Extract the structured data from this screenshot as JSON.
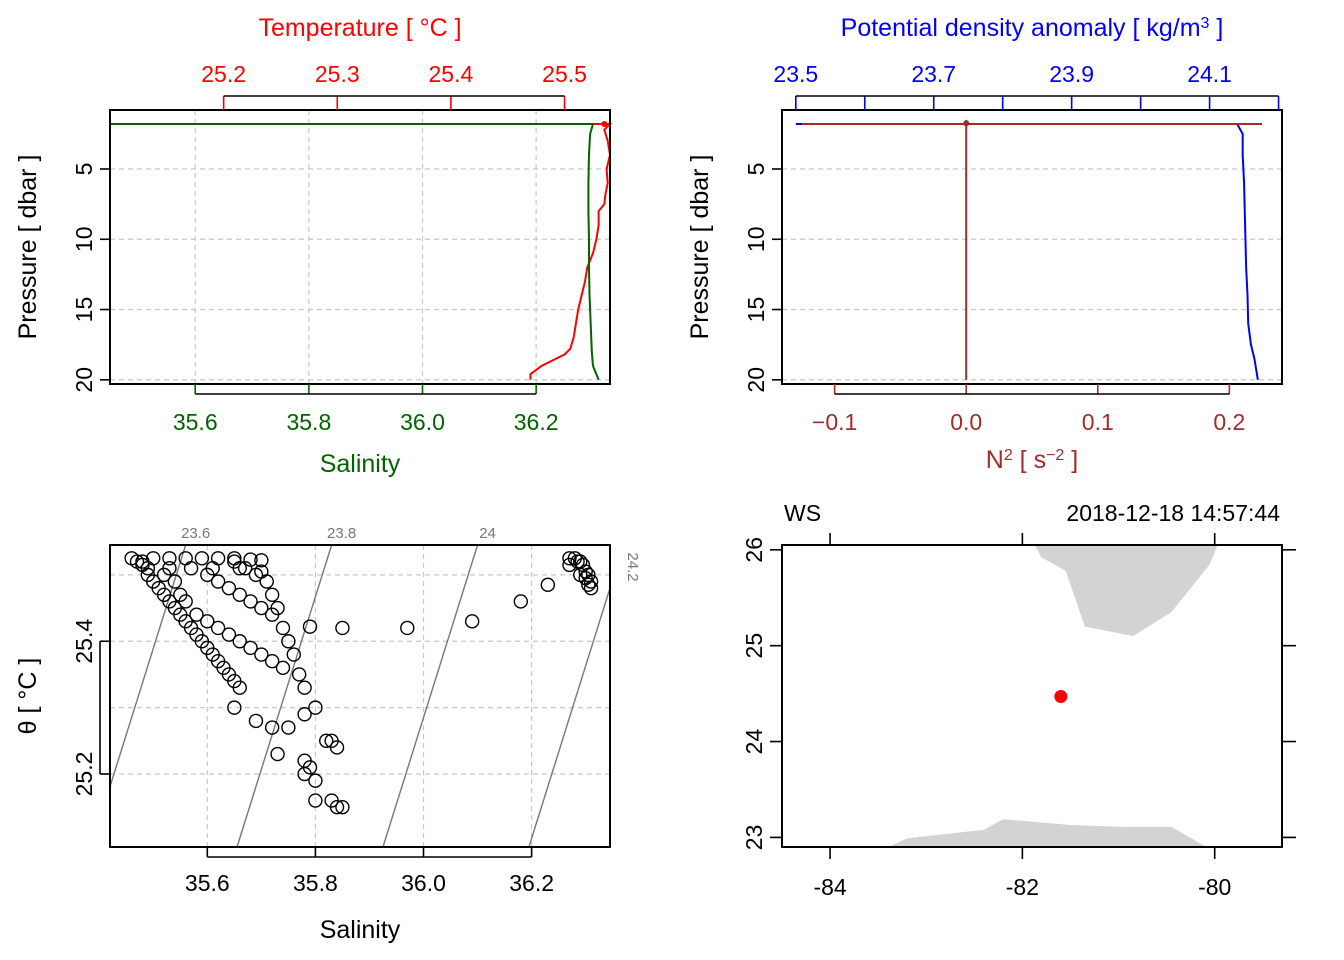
{
  "colors": {
    "temperature": "#ff0000",
    "salinity": "#006400",
    "density": "#0000ff",
    "n2": "#a52a2a",
    "grid": "#c8c8c8",
    "isopycnal": "#777777",
    "land": "#d3d3d3",
    "station": "#ff0000"
  },
  "chart_data": [
    {
      "type": "line",
      "panel": "profile-salinity-temperature",
      "top_axis_title": "Temperature [ °C ]",
      "bottom_axis_title": "Salinity",
      "ylabel": "Pressure [ dbar ]",
      "temp_ticks": [
        "25.2",
        "25.3",
        "25.4",
        "25.5"
      ],
      "sal_ticks": [
        "35.6",
        "35.8",
        "36.0",
        "36.2"
      ],
      "pressure_ticks": [
        "5",
        "10",
        "15",
        "20"
      ],
      "xlim_salinity": [
        35.45,
        36.33
      ],
      "xlim_temperature": [
        25.1,
        25.54
      ],
      "ylim_pressure": [
        20.3,
        0.8
      ],
      "grid": true,
      "series": [
        {
          "name": "Temperature",
          "x": [
            25.0,
            25.55,
            25.535,
            25.538,
            25.54,
            25.537,
            25.538,
            25.536,
            25.535,
            25.53,
            25.53,
            25.528,
            25.525,
            25.52,
            25.518,
            25.515,
            25.512,
            25.51,
            25.508,
            25.505,
            25.5,
            25.49,
            25.48,
            25.475,
            25.47,
            25.47
          ],
          "y": [
            1.8,
            1.8,
            2.2,
            3.0,
            4.0,
            5.0,
            6.0,
            6.8,
            7.5,
            8.0,
            9.0,
            10.0,
            11.0,
            12.0,
            13.0,
            14.0,
            15.0,
            16.0,
            17.0,
            17.8,
            18.2,
            18.6,
            19.0,
            19.3,
            19.6,
            20.0
          ]
        },
        {
          "name": "Salinity",
          "x": [
            35.45,
            36.3,
            36.295,
            36.293,
            36.292,
            36.292,
            36.293,
            36.293,
            36.294,
            36.296,
            36.298,
            36.3,
            36.31
          ],
          "y": [
            1.8,
            1.8,
            2.5,
            4.0,
            6.0,
            8.0,
            10.0,
            12.0,
            14.0,
            16.0,
            18.0,
            19.0,
            20.0
          ]
        }
      ]
    },
    {
      "type": "line",
      "panel": "profile-density-n2",
      "top_axis_title": "Potential density anomaly [ kg/m",
      "top_axis_title_sup": "3",
      "top_axis_title_end": " ]",
      "bottom_axis_title": "N",
      "bottom_axis_title_sup": "2",
      "bottom_axis_title_mid": " [ s",
      "bottom_axis_title_sup2": "−2",
      "bottom_axis_title_end": " ]",
      "ylabel": "Pressure [ dbar ]",
      "density_ticks": [
        "23.5",
        "23.7",
        "23.9",
        "24.1"
      ],
      "density_minor_ticks": [
        23.5,
        23.6,
        23.7,
        23.8,
        23.9,
        24.0,
        24.1,
        24.2
      ],
      "n2_ticks": [
        "−0.1",
        "0.0",
        "0.1",
        "0.2"
      ],
      "pressure_ticks": [
        "5",
        "10",
        "15",
        "20"
      ],
      "xlim_density": [
        23.48,
        24.205
      ],
      "xlim_n2": [
        -0.14,
        0.24
      ],
      "ylim_pressure": [
        20.3,
        0.8
      ],
      "grid": true,
      "series": [
        {
          "name": "Potential density anomaly",
          "x": [
            23.5,
            24.14,
            24.148,
            24.148,
            24.15,
            24.151,
            24.152,
            24.153,
            24.155,
            24.156,
            24.16,
            24.165,
            24.17
          ],
          "y": [
            1.8,
            1.8,
            2.5,
            4.0,
            6.0,
            8.0,
            10.0,
            12.0,
            14.0,
            16.0,
            17.5,
            18.5,
            20.0
          ]
        },
        {
          "name": "N2",
          "x": [
            0.0,
            0.0
          ],
          "y": [
            1.5,
            20.0
          ]
        },
        {
          "name": "N2 top spike",
          "x": [
            -0.14,
            0.24
          ],
          "y": [
            1.8,
            1.8
          ]
        }
      ]
    },
    {
      "type": "scatter",
      "panel": "ts-diagram",
      "xlabel": "Salinity",
      "ylabel": "θ [ °C ]",
      "x_ticks": [
        "35.6",
        "35.8",
        "36.0",
        "36.2"
      ],
      "y_ticks": [
        "25.2",
        "25.4"
      ],
      "xlim": [
        35.42,
        36.345
      ],
      "ylim": [
        25.09,
        25.545
      ],
      "isopycnals": [
        "23.6",
        "23.8",
        "24",
        "24.2"
      ],
      "grid": true,
      "points": [
        [
          36.27,
          25.525
        ],
        [
          36.28,
          25.525
        ],
        [
          36.29,
          25.52
        ],
        [
          36.295,
          25.515
        ],
        [
          36.3,
          25.505
        ],
        [
          36.305,
          25.5
        ],
        [
          36.31,
          25.49
        ],
        [
          36.305,
          25.485
        ],
        [
          36.31,
          25.48
        ],
        [
          36.285,
          25.52
        ],
        [
          36.29,
          25.5
        ],
        [
          36.3,
          25.495
        ],
        [
          36.27,
          25.515
        ],
        [
          36.23,
          25.485
        ],
        [
          36.18,
          25.46
        ],
        [
          36.09,
          25.43
        ],
        [
          35.97,
          25.42
        ],
        [
          35.85,
          25.42
        ],
        [
          35.79,
          25.422
        ],
        [
          35.46,
          25.525
        ],
        [
          35.47,
          25.52
        ],
        [
          35.48,
          25.515
        ],
        [
          35.49,
          25.5
        ],
        [
          35.5,
          25.49
        ],
        [
          35.51,
          25.48
        ],
        [
          35.52,
          25.47
        ],
        [
          35.53,
          25.46
        ],
        [
          35.54,
          25.45
        ],
        [
          35.55,
          25.44
        ],
        [
          35.56,
          25.43
        ],
        [
          35.57,
          25.42
        ],
        [
          35.58,
          25.41
        ],
        [
          35.59,
          25.4
        ],
        [
          35.6,
          25.39
        ],
        [
          35.61,
          25.38
        ],
        [
          35.62,
          25.37
        ],
        [
          35.63,
          25.36
        ],
        [
          35.64,
          25.35
        ],
        [
          35.65,
          25.34
        ],
        [
          35.66,
          25.33
        ],
        [
          35.52,
          25.5
        ],
        [
          35.54,
          25.49
        ],
        [
          35.55,
          25.47
        ],
        [
          35.56,
          25.46
        ],
        [
          35.58,
          25.44
        ],
        [
          35.6,
          25.43
        ],
        [
          35.62,
          25.42
        ],
        [
          35.64,
          25.41
        ],
        [
          35.66,
          25.4
        ],
        [
          35.68,
          25.39
        ],
        [
          35.7,
          25.38
        ],
        [
          35.72,
          25.37
        ],
        [
          35.74,
          25.36
        ],
        [
          35.6,
          25.5
        ],
        [
          35.62,
          25.49
        ],
        [
          35.64,
          25.48
        ],
        [
          35.66,
          25.47
        ],
        [
          35.68,
          25.46
        ],
        [
          35.7,
          25.45
        ],
        [
          35.72,
          25.44
        ],
        [
          35.74,
          25.42
        ],
        [
          35.75,
          25.4
        ],
        [
          35.76,
          25.38
        ],
        [
          35.77,
          25.35
        ],
        [
          35.78,
          25.33
        ],
        [
          35.65,
          25.52
        ],
        [
          35.67,
          25.51
        ],
        [
          35.69,
          25.5
        ],
        [
          35.71,
          25.49
        ],
        [
          35.72,
          25.47
        ],
        [
          35.73,
          25.45
        ],
        [
          35.48,
          25.52
        ],
        [
          35.5,
          25.525
        ],
        [
          35.53,
          25.525
        ],
        [
          35.56,
          25.525
        ],
        [
          35.59,
          25.525
        ],
        [
          35.62,
          25.525
        ],
        [
          35.65,
          25.525
        ],
        [
          35.68,
          25.523
        ],
        [
          35.7,
          25.522
        ],
        [
          35.49,
          25.51
        ],
        [
          35.53,
          25.51
        ],
        [
          35.57,
          25.51
        ],
        [
          35.61,
          25.51
        ],
        [
          35.66,
          25.51
        ],
        [
          35.7,
          25.505
        ],
        [
          35.65,
          25.3
        ],
        [
          35.69,
          25.28
        ],
        [
          35.72,
          25.27
        ],
        [
          35.75,
          25.27
        ],
        [
          35.78,
          25.29
        ],
        [
          35.8,
          25.3
        ],
        [
          35.82,
          25.25
        ],
        [
          35.83,
          25.25
        ],
        [
          35.84,
          25.24
        ],
        [
          35.73,
          25.23
        ],
        [
          35.78,
          25.22
        ],
        [
          35.79,
          25.21
        ],
        [
          35.8,
          25.19
        ],
        [
          35.78,
          25.2
        ],
        [
          35.8,
          25.16
        ],
        [
          35.83,
          25.16
        ],
        [
          35.84,
          25.15
        ],
        [
          35.85,
          25.15
        ]
      ]
    },
    {
      "type": "map",
      "panel": "station-map",
      "station_label": "WS",
      "datetime": "2018-12-18 14:57:44",
      "x_ticks": [
        "-84",
        "-82",
        "-80"
      ],
      "y_ticks": [
        "23",
        "24",
        "25",
        "26"
      ],
      "xlim": [
        -84.5,
        -79.3
      ],
      "ylim": [
        22.9,
        26.05
      ],
      "station": {
        "lon": -81.6,
        "lat": 24.47
      }
    }
  ]
}
